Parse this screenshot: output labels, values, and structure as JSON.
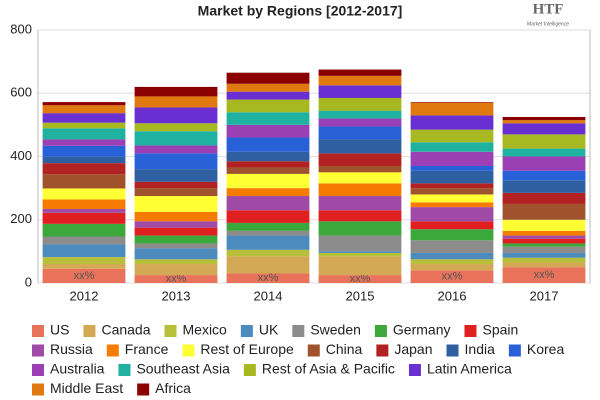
{
  "chart_data": {
    "type": "stacked-bar",
    "title": "Market by Regions [2012-2017]",
    "logo": {
      "title": "HTF",
      "subtitle": "Market Intelligence"
    },
    "categories": [
      "2012",
      "2013",
      "2014",
      "2015",
      "2016",
      "2017"
    ],
    "annotations": [
      "xx%",
      "xx%",
      "xx%",
      "xx%",
      "xx%",
      "xx%"
    ],
    "ylim": [
      0,
      800
    ],
    "yticks": [
      0,
      200,
      400,
      600,
      800
    ],
    "grid": true,
    "series": [
      {
        "name": "US",
        "color": "#e8735a",
        "values": [
          45,
          25,
          30,
          25,
          40,
          50
        ]
      },
      {
        "name": "Canada",
        "color": "#d4a955",
        "values": [
          15,
          35,
          55,
          60,
          20,
          15
        ]
      },
      {
        "name": "Mexico",
        "color": "#b8bf3a",
        "values": [
          22,
          15,
          20,
          10,
          15,
          15
        ]
      },
      {
        "name": "UK",
        "color": "#4b8bbe",
        "values": [
          40,
          35,
          45,
          5,
          20,
          15
        ]
      },
      {
        "name": "Sweden",
        "color": "#8c8c8c",
        "values": [
          25,
          15,
          15,
          50,
          40,
          20
        ]
      },
      {
        "name": "Germany",
        "color": "#3aa83a",
        "values": [
          40,
          25,
          25,
          45,
          35,
          10
        ]
      },
      {
        "name": "Spain",
        "color": "#e02020",
        "values": [
          35,
          25,
          40,
          35,
          25,
          15
        ]
      },
      {
        "name": "Russia",
        "color": "#a04aa8",
        "values": [
          12,
          20,
          45,
          45,
          45,
          10
        ]
      },
      {
        "name": "France",
        "color": "#f57c00",
        "values": [
          30,
          30,
          25,
          40,
          15,
          15
        ]
      },
      {
        "name": "Rest of Europe",
        "color": "#ffff33",
        "values": [
          35,
          50,
          45,
          35,
          25,
          35
        ]
      },
      {
        "name": "China",
        "color": "#a0522d",
        "values": [
          45,
          25,
          20,
          20,
          20,
          50
        ]
      },
      {
        "name": "Japan",
        "color": "#b22222",
        "values": [
          35,
          20,
          20,
          40,
          15,
          35
        ]
      },
      {
        "name": "India",
        "color": "#2e5fa0",
        "values": [
          20,
          40,
          30,
          45,
          40,
          40
        ]
      },
      {
        "name": "Korea",
        "color": "#2860d8",
        "values": [
          35,
          50,
          45,
          40,
          15,
          30
        ]
      },
      {
        "name": "Australia",
        "color": "#9b3fb5",
        "values": [
          20,
          25,
          40,
          25,
          45,
          45
        ]
      },
      {
        "name": "Southeast Asia",
        "color": "#20b2a0",
        "values": [
          35,
          45,
          40,
          25,
          30,
          25
        ]
      },
      {
        "name": "Rest of Asia & Pacific",
        "color": "#a8b820",
        "values": [
          18,
          25,
          40,
          40,
          40,
          45
        ]
      },
      {
        "name": "Latin America",
        "color": "#6a2fd0",
        "values": [
          30,
          50,
          25,
          40,
          45,
          35
        ]
      },
      {
        "name": "Middle East",
        "color": "#e07a10",
        "values": [
          25,
          35,
          25,
          30,
          40,
          10
        ]
      },
      {
        "name": "Africa",
        "color": "#8b0000",
        "values": [
          10,
          30,
          35,
          20,
          2,
          10
        ]
      }
    ]
  }
}
